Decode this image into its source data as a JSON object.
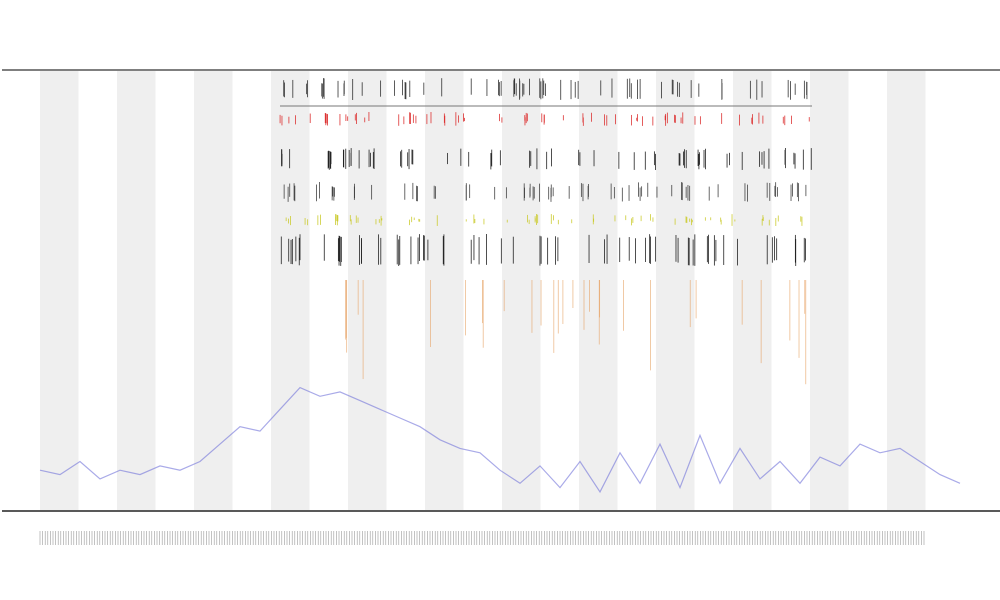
{
  "chart_data": {
    "type": "line",
    "x": [
      0,
      20,
      40,
      60,
      80,
      100,
      120,
      140,
      160,
      180,
      200,
      220,
      240,
      260,
      280,
      300,
      320,
      340,
      360,
      380,
      400,
      420,
      440,
      460,
      480,
      500,
      520,
      540,
      560,
      580,
      600,
      620,
      640,
      660,
      680,
      700,
      720,
      740,
      760,
      780,
      800,
      820,
      840,
      860,
      880,
      900,
      920
    ],
    "series": [
      {
        "color": "#6f72d8",
        "values": [
          8,
          7,
          10,
          6,
          8,
          7,
          9,
          8,
          10,
          14,
          18,
          17,
          22,
          27,
          25,
          26,
          24,
          22,
          20,
          18,
          15,
          13,
          12,
          8,
          5,
          9,
          4,
          10,
          3,
          12,
          5,
          14,
          4,
          16,
          5,
          13,
          6,
          10,
          5,
          11,
          9,
          14,
          12,
          13,
          10,
          7,
          5
        ]
      }
    ],
    "xlim": [
      0,
      920
    ],
    "ylim": [
      0,
      100
    ]
  }
}
